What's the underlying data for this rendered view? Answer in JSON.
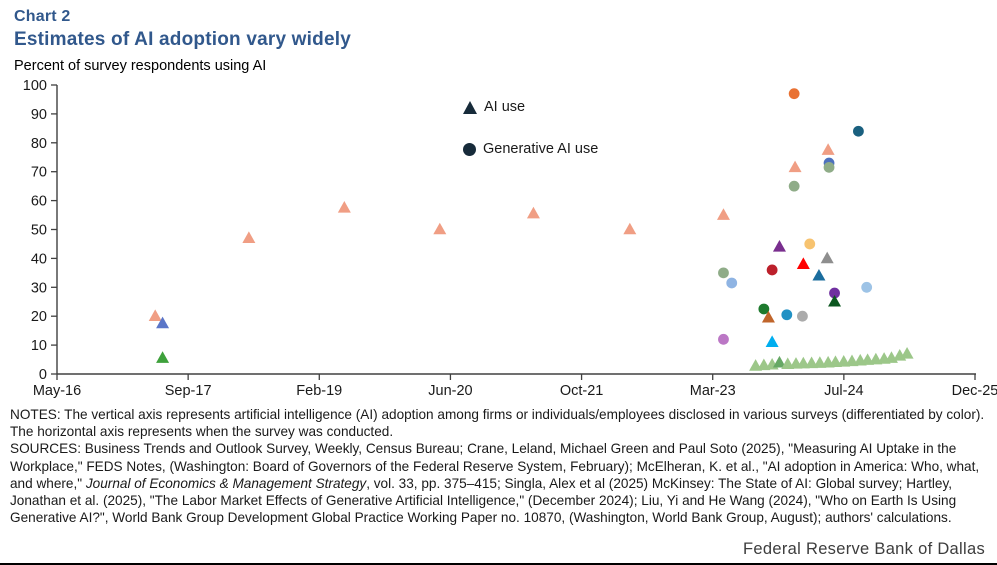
{
  "header": {
    "chart_number": "Chart 2",
    "title": "Estimates of AI adoption vary widely",
    "axis_title": "Percent of survey respondents using AI"
  },
  "legend": {
    "marker_color": "#17303F",
    "items": [
      {
        "shape": "triangle",
        "label": "AI use"
      },
      {
        "shape": "circle",
        "label": "Generative AI use"
      }
    ]
  },
  "chart_data": {
    "type": "scatter",
    "title": "Estimates of AI adoption vary widely",
    "ylabel": "Percent of survey respondents using AI",
    "legend_position": "inside-top-center",
    "grid": false,
    "x_axis": {
      "tick_labels": [
        "May-16",
        "Sep-17",
        "Feb-19",
        "Jun-20",
        "Oct-21",
        "Mar-23",
        "Jul-24",
        "Dec-25"
      ],
      "range_note": "survey date, May 2016 to Dec 2025"
    },
    "y_axis": {
      "ticks": [
        0,
        10,
        20,
        30,
        40,
        50,
        60,
        70,
        80,
        90,
        100
      ],
      "range": [
        0,
        100
      ]
    },
    "series": [
      {
        "name": "AI use",
        "marker": "triangle"
      },
      {
        "name": "Generative AI use",
        "marker": "circle"
      }
    ],
    "points": [
      {
        "series": "AI use",
        "shape": "triangle",
        "color": "#F09E84",
        "date": "May-17",
        "x_frac": 0.107,
        "value": 20
      },
      {
        "series": "AI use",
        "shape": "triangle",
        "color": "#5B76C8",
        "date": "Jun-17",
        "x_frac": 0.115,
        "value": 17.5
      },
      {
        "series": "AI use",
        "shape": "triangle",
        "color": "#3EA13B",
        "date": "Jun-17",
        "x_frac": 0.115,
        "value": 5.5
      },
      {
        "series": "AI use",
        "shape": "triangle",
        "color": "#F09E84",
        "date": "May-18",
        "x_frac": 0.209,
        "value": 47
      },
      {
        "series": "AI use",
        "shape": "triangle",
        "color": "#F09E84",
        "date": "May-19",
        "x_frac": 0.313,
        "value": 57.5
      },
      {
        "series": "AI use",
        "shape": "triangle",
        "color": "#F09E84",
        "date": "Apr-20",
        "x_frac": 0.417,
        "value": 50
      },
      {
        "series": "AI use",
        "shape": "triangle",
        "color": "#F09E84",
        "date": "Apr-21",
        "x_frac": 0.519,
        "value": 55.5
      },
      {
        "series": "AI use",
        "shape": "triangle",
        "color": "#F09E84",
        "date": "Apr-22",
        "x_frac": 0.624,
        "value": 50
      },
      {
        "series": "AI use",
        "shape": "triangle",
        "color": "#F09E84",
        "date": "Apr-23",
        "x_frac": 0.726,
        "value": 55
      },
      {
        "series": "AI use",
        "shape": "triangle",
        "color": "#F09E84",
        "date": "Jan-24",
        "x_frac": 0.804,
        "value": 71.5
      },
      {
        "series": "AI use",
        "shape": "triangle",
        "color": "#F09E84",
        "date": "May-24",
        "x_frac": 0.84,
        "value": 77.5
      },
      {
        "series": "Generative AI use",
        "shape": "circle",
        "color": "#E97132",
        "date": "Jan-24",
        "x_frac": 0.803,
        "value": 97
      },
      {
        "series": "Generative AI use",
        "shape": "circle",
        "color": "#1A607F",
        "date": "Sep-24",
        "x_frac": 0.873,
        "value": 84
      },
      {
        "series": "Generative AI use",
        "shape": "circle",
        "color": "#4D71BE",
        "date": "May-24",
        "x_frac": 0.841,
        "value": 73
      },
      {
        "series": "Generative AI use",
        "shape": "circle",
        "color": "#8FAC88",
        "date": "May-24",
        "x_frac": 0.841,
        "value": 71.5
      },
      {
        "series": "Generative AI use",
        "shape": "circle",
        "color": "#8FAC88",
        "date": "Jan-24",
        "x_frac": 0.803,
        "value": 65
      },
      {
        "series": "Generative AI use",
        "shape": "circle",
        "color": "#F7C370",
        "date": "Mar-24",
        "x_frac": 0.82,
        "value": 45
      },
      {
        "series": "AI use",
        "shape": "triangle",
        "color": "#792E8E",
        "date": "Nov-23",
        "x_frac": 0.787,
        "value": 44
      },
      {
        "series": "AI use",
        "shape": "triangle",
        "color": "#8E8E8E",
        "date": "May-24",
        "x_frac": 0.839,
        "value": 40
      },
      {
        "series": "AI use",
        "shape": "triangle",
        "color": "#FF0000",
        "date": "Mar-24",
        "x_frac": 0.813,
        "value": 38
      },
      {
        "series": "Generative AI use",
        "shape": "circle",
        "color": "#BC202B",
        "date": "Oct-23",
        "x_frac": 0.779,
        "value": 36
      },
      {
        "series": "Generative AI use",
        "shape": "circle",
        "color": "#8FAC88",
        "date": "Apr-23",
        "x_frac": 0.726,
        "value": 35
      },
      {
        "series": "AI use",
        "shape": "triangle",
        "color": "#1B6D9E",
        "date": "Apr-24",
        "x_frac": 0.83,
        "value": 34
      },
      {
        "series": "Generative AI use",
        "shape": "circle",
        "color": "#8FB4E3",
        "date": "May-23",
        "x_frac": 0.735,
        "value": 31.5
      },
      {
        "series": "Generative AI use",
        "shape": "circle",
        "color": "#9DC3E6",
        "date": "Oct-24",
        "x_frac": 0.882,
        "value": 30
      },
      {
        "series": "Generative AI use",
        "shape": "circle",
        "color": "#7030A0",
        "date": "Jun-24",
        "x_frac": 0.847,
        "value": 28
      },
      {
        "series": "AI use",
        "shape": "triangle",
        "color": "#0C5720",
        "date": "Jun-24",
        "x_frac": 0.847,
        "value": 25
      },
      {
        "series": "Generative AI use",
        "shape": "circle",
        "color": "#1E7A2E",
        "date": "Sep-23",
        "x_frac": 0.77,
        "value": 22.5
      },
      {
        "series": "Generative AI use",
        "shape": "circle",
        "color": "#2191C4",
        "date": "Dec-23",
        "x_frac": 0.795,
        "value": 20.5
      },
      {
        "series": "Generative AI use",
        "shape": "circle",
        "color": "#ABABAB",
        "date": "Feb-24",
        "x_frac": 0.812,
        "value": 20
      },
      {
        "series": "AI use",
        "shape": "triangle",
        "color": "#C0652B",
        "date": "Oct-23",
        "x_frac": 0.775,
        "value": 19.5
      },
      {
        "series": "Generative AI use",
        "shape": "circle",
        "color": "#BB77C5",
        "date": "Apr-23",
        "x_frac": 0.726,
        "value": 12
      },
      {
        "series": "AI use",
        "shape": "triangle",
        "color": "#00AEEF",
        "date": "Oct-23",
        "x_frac": 0.779,
        "value": 11
      },
      {
        "series": "AI use",
        "shape": "triangle",
        "color": "#9CC789",
        "date": "Aug-23",
        "x_frac": 0.761,
        "value": 2.8
      },
      {
        "series": "AI use",
        "shape": "triangle",
        "color": "#9CC789",
        "date": "Sep-23",
        "x_frac": 0.77,
        "value": 3.0
      },
      {
        "series": "AI use",
        "shape": "triangle",
        "color": "#9CC789",
        "date": "Oct-23",
        "x_frac": 0.779,
        "value": 3.2
      },
      {
        "series": "AI use",
        "shape": "triangle",
        "color": "#66A865",
        "date": "Nov-23",
        "x_frac": 0.787,
        "value": 3.9
      },
      {
        "series": "AI use",
        "shape": "triangle",
        "color": "#9CC789",
        "date": "Dec-23",
        "x_frac": 0.796,
        "value": 3.4
      },
      {
        "series": "AI use",
        "shape": "triangle",
        "color": "#9CC789",
        "date": "Jan-24",
        "x_frac": 0.805,
        "value": 3.5
      },
      {
        "series": "AI use",
        "shape": "triangle",
        "color": "#9CC789",
        "date": "Feb-24",
        "x_frac": 0.813,
        "value": 3.6
      },
      {
        "series": "AI use",
        "shape": "triangle",
        "color": "#9CC789",
        "date": "Mar-24",
        "x_frac": 0.822,
        "value": 3.7
      },
      {
        "series": "AI use",
        "shape": "triangle",
        "color": "#9CC789",
        "date": "Apr-24",
        "x_frac": 0.831,
        "value": 3.8
      },
      {
        "series": "AI use",
        "shape": "triangle",
        "color": "#9CC789",
        "date": "May-24",
        "x_frac": 0.84,
        "value": 3.9
      },
      {
        "series": "AI use",
        "shape": "triangle",
        "color": "#9CC789",
        "date": "Jun-24",
        "x_frac": 0.848,
        "value": 4.1
      },
      {
        "series": "AI use",
        "shape": "triangle",
        "color": "#9CC789",
        "date": "Jul-24",
        "x_frac": 0.857,
        "value": 4.2
      },
      {
        "series": "AI use",
        "shape": "triangle",
        "color": "#9CC789",
        "date": "Aug-24",
        "x_frac": 0.866,
        "value": 4.4
      },
      {
        "series": "AI use",
        "shape": "triangle",
        "color": "#9CC789",
        "date": "Sep-24",
        "x_frac": 0.875,
        "value": 4.6
      },
      {
        "series": "AI use",
        "shape": "triangle",
        "color": "#9CC789",
        "date": "Oct-24",
        "x_frac": 0.883,
        "value": 4.8
      },
      {
        "series": "AI use",
        "shape": "triangle",
        "color": "#9CC789",
        "date": "Nov-24",
        "x_frac": 0.892,
        "value": 5.0
      },
      {
        "series": "AI use",
        "shape": "triangle",
        "color": "#9CC789",
        "date": "Dec-24",
        "x_frac": 0.901,
        "value": 5.2
      },
      {
        "series": "AI use",
        "shape": "triangle",
        "color": "#9CC789",
        "date": "Jan-25",
        "x_frac": 0.909,
        "value": 5.5
      },
      {
        "series": "AI use",
        "shape": "triangle",
        "color": "#9CC789",
        "date": "Feb-25",
        "x_frac": 0.918,
        "value": 6.3
      },
      {
        "series": "AI use",
        "shape": "triangle",
        "color": "#9CC789",
        "date": "Mar-25",
        "x_frac": 0.926,
        "value": 7.0
      }
    ]
  },
  "notes": {
    "notes_text": "NOTES: The vertical axis represents artificial intelligence (AI) adoption among firms or individuals/employees disclosed in various surveys (differentiated by color). The horizontal axis represents when the survey was conducted.",
    "sources_part1": "SOURCES: Business Trends and Outlook Survey, Weekly, Census Bureau; Crane, Leland, Michael Green and Paul Soto (2025), \"Measuring AI Uptake in the Workplace,\" FEDS Notes, (Washington: Board of Governors of the Federal Reserve System, February); McElheran, K. et al., \"AI adoption in America: Who, what, and where,\" ",
    "sources_italic": "Journal of Economics & Management Strategy",
    "sources_part2": ", vol. 33, pp. 375–415; Singla, Alex et al (2025) McKinsey: The State of AI: Global survey; Hartley, Jonathan et al. (2025), \"The Labor Market Effects of Generative Artificial Intelligence,\" (December 2024); Liu, Yi and He Wang (2024), \"Who on Earth Is Using Generative AI?\", World Bank Group Development Global Practice Working Paper no. 10870, (Washington, World Bank Group, August); authors' calculations."
  },
  "footer": {
    "brand": "Federal Reserve Bank of Dallas"
  }
}
